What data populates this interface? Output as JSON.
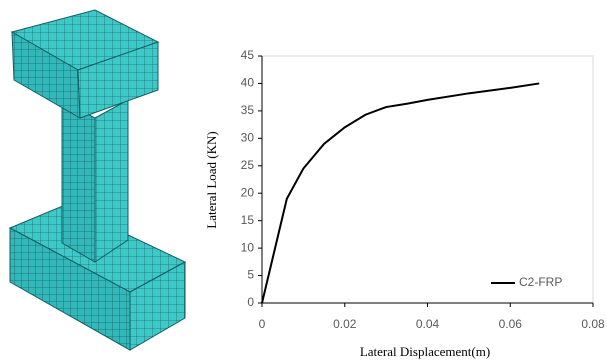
{
  "chart_data": {
    "type": "line",
    "x_label": "Lateral Displacement(m)",
    "y_label": "Lateral Load (KN)",
    "x": [
      0,
      0.006,
      0.01,
      0.015,
      0.02,
      0.025,
      0.03,
      0.035,
      0.04,
      0.05,
      0.06,
      0.067
    ],
    "series": [
      {
        "name": "C2-FRP",
        "color": "#000000",
        "values": [
          0,
          19,
          24.5,
          29,
          32,
          34.3,
          35.7,
          36.3,
          37,
          38.2,
          39.2,
          40
        ]
      }
    ],
    "xlim": [
      0,
      0.08
    ],
    "xticks": [
      0,
      0.02,
      0.04,
      0.06,
      0.08
    ],
    "ylim": [
      0,
      45
    ],
    "yticks": [
      0,
      5,
      10,
      15,
      20,
      25,
      30,
      35,
      40,
      45
    ],
    "legend": "lower right"
  }
}
